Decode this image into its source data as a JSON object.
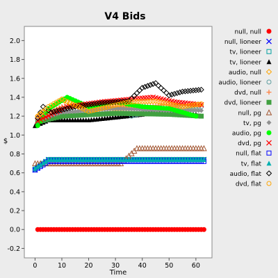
{
  "chart_data": {
    "type": "scatter",
    "title": "V4 Bids",
    "xlabel": "Time",
    "ylabel": "$",
    "xlim": [
      -4,
      66
    ],
    "ylim": [
      -0.3,
      2.15
    ],
    "xticks": [
      0,
      10,
      20,
      30,
      40,
      50,
      60
    ],
    "yticks": [
      -0.2,
      0.0,
      0.2,
      0.4,
      0.6,
      0.8,
      1.0,
      1.2,
      1.4,
      1.6,
      1.8,
      2.0
    ],
    "yticklabels": [
      "-0.2",
      "0.0",
      "0.2",
      "0.4",
      "0.6",
      "0.8",
      "1.0",
      "1.2",
      "1.4",
      "1.6",
      "1.8",
      "2.0"
    ],
    "grid": false,
    "legend_position": "right",
    "series": [
      {
        "name": "null, null",
        "marker": "dot",
        "color": "#ff0000",
        "x": [
          1,
          63
        ],
        "y": [
          0.0,
          0.0
        ]
      },
      {
        "name": "null, lioneer",
        "marker": "x",
        "color": "#0000ff",
        "x": [
          0,
          5,
          63
        ],
        "y": [
          0.63,
          0.74,
          0.74
        ]
      },
      {
        "name": "tv, lioneer",
        "marker": "square-open",
        "color": "#00a0a0",
        "x": [
          0,
          5,
          63
        ],
        "y": [
          0.64,
          0.74,
          0.74
        ]
      },
      {
        "name": "tv, lioneer",
        "marker": "triangle",
        "color": "#000000",
        "x": [
          0,
          5,
          20,
          40,
          45,
          60
        ],
        "y": [
          1.1,
          1.16,
          1.16,
          1.22,
          1.28,
          1.22
        ]
      },
      {
        "name": "audio, null",
        "marker": "diamond-open",
        "color": "#ffa500",
        "x": [
          1,
          10,
          20,
          40,
          60
        ],
        "y": [
          1.2,
          1.37,
          1.28,
          1.28,
          1.28
        ]
      },
      {
        "name": "audio, lioneer",
        "marker": "circle-open",
        "color": "#5f9ea0",
        "x": [
          36,
          45,
          55,
          62
        ],
        "y": [
          1.2,
          1.27,
          1.3,
          1.3
        ]
      },
      {
        "name": "dvd, null",
        "marker": "plus",
        "color": "#ff8040",
        "x": [
          1,
          10,
          30,
          50,
          62
        ],
        "y": [
          1.2,
          1.3,
          1.3,
          1.32,
          1.32
        ]
      },
      {
        "name": "dvd, lioneer",
        "marker": "square",
        "color": "#40a040",
        "x": [
          1,
          10,
          30,
          50,
          62
        ],
        "y": [
          1.14,
          1.2,
          1.23,
          1.22,
          1.2
        ]
      },
      {
        "name": "null, pg",
        "marker": "triangle-open",
        "color": "#a0522d",
        "x": [
          0,
          32,
          38,
          63
        ],
        "y": [
          0.7,
          0.7,
          0.86,
          0.86
        ]
      },
      {
        "name": "tv, pg",
        "marker": "diamond",
        "color": "#909090",
        "x": [
          1,
          10,
          30,
          50,
          62
        ],
        "y": [
          1.16,
          1.24,
          1.28,
          1.26,
          1.26
        ]
      },
      {
        "name": "audio, pg",
        "marker": "dot",
        "color": "#00ff00",
        "x": [
          1,
          5,
          12,
          20,
          30,
          40,
          50,
          60
        ],
        "y": [
          1.1,
          1.28,
          1.4,
          1.3,
          1.35,
          1.3,
          1.28,
          1.2
        ]
      },
      {
        "name": "dvd, pg",
        "marker": "x",
        "color": "#ff0000",
        "x": [
          1,
          12,
          25,
          44,
          52,
          62
        ],
        "y": [
          1.15,
          1.3,
          1.35,
          1.4,
          1.35,
          1.32
        ]
      },
      {
        "name": "null, flat",
        "marker": "square-open",
        "color": "#0000ff",
        "x": [
          0,
          5,
          63
        ],
        "y": [
          0.63,
          0.72,
          0.72
        ]
      },
      {
        "name": "tv, flat",
        "marker": "triangle",
        "color": "#00b0b0",
        "x": [
          0,
          5,
          63
        ],
        "y": [
          0.65,
          0.74,
          0.74
        ]
      },
      {
        "name": "audio, flat",
        "marker": "diamond-open",
        "color": "#000000",
        "x": [
          1,
          3,
          6,
          15,
          25,
          35,
          40,
          45,
          50,
          55,
          62
        ],
        "y": [
          1.18,
          1.3,
          1.24,
          1.3,
          1.34,
          1.36,
          1.5,
          1.55,
          1.42,
          1.46,
          1.48
        ]
      },
      {
        "name": "dvd, flat",
        "marker": "circle-open",
        "color": "#ffa500",
        "x": [
          1,
          5,
          10,
          20,
          35,
          45,
          55,
          62
        ],
        "y": [
          1.2,
          1.3,
          1.38,
          1.25,
          1.35,
          1.36,
          1.3,
          1.33
        ]
      }
    ]
  }
}
